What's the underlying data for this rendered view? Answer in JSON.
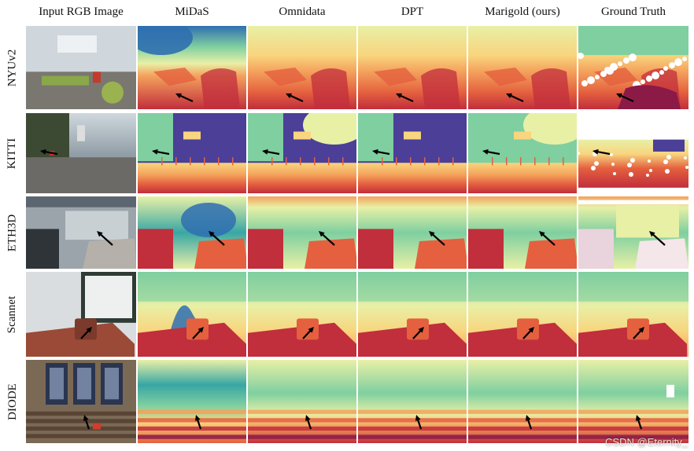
{
  "figure": {
    "columns": [
      "Input RGB Image",
      "MiDaS",
      "Omnidata",
      "DPT",
      "Marigold (ours)",
      "Ground Truth"
    ],
    "rows": [
      "NYUv2",
      "KITTI",
      "ETH3D",
      "Scannet",
      "DIODE"
    ]
  },
  "colormap": [
    "#4b3f98",
    "#2f6fb0",
    "#38a6a5",
    "#7fcfa0",
    "#e8f0a6",
    "#f8d57e",
    "#f4a15c",
    "#e4603f",
    "#c12e3c",
    "#8b1a46"
  ],
  "watermark": "CSDN @Eternity_"
}
